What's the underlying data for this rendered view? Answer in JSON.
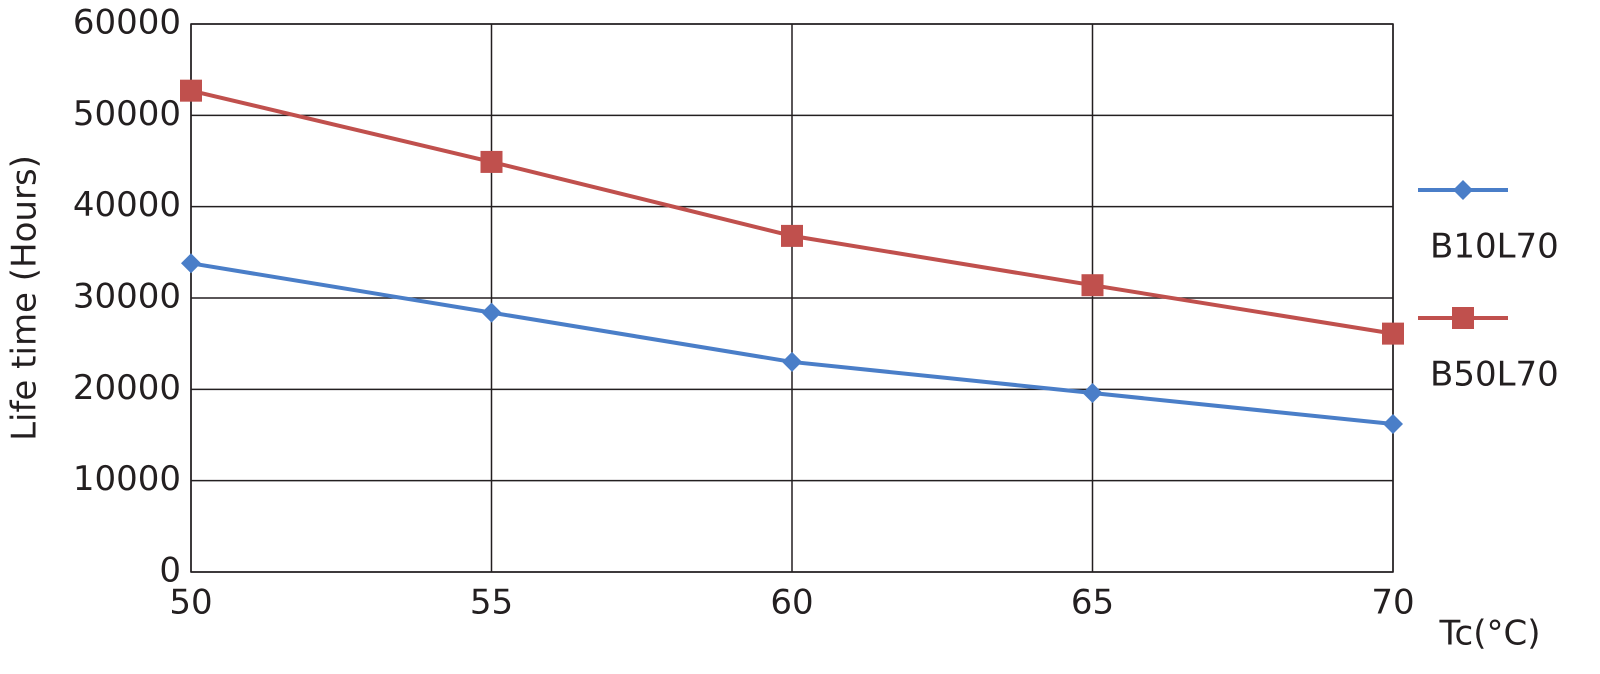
{
  "chart_data": {
    "type": "line",
    "x_label": "Tc(°C)",
    "y_label": "Life time (Hours)",
    "x": [
      50,
      55,
      60,
      65,
      70
    ],
    "xlim": [
      50,
      70
    ],
    "xticks": [
      50,
      55,
      60,
      65,
      70
    ],
    "ylim": [
      0,
      60000
    ],
    "yticks": [
      0,
      10000,
      20000,
      30000,
      40000,
      50000,
      60000
    ],
    "grid": true,
    "legend": "right",
    "series": [
      {
        "name": "B10L70",
        "color": "#4a7ec8",
        "marker": "diamond",
        "values": [
          33800,
          28400,
          23000,
          19600,
          16200
        ]
      },
      {
        "name": "B50L70",
        "color": "#c0504d",
        "marker": "square",
        "values": [
          52700,
          44900,
          36800,
          31400,
          26100
        ]
      }
    ]
  }
}
